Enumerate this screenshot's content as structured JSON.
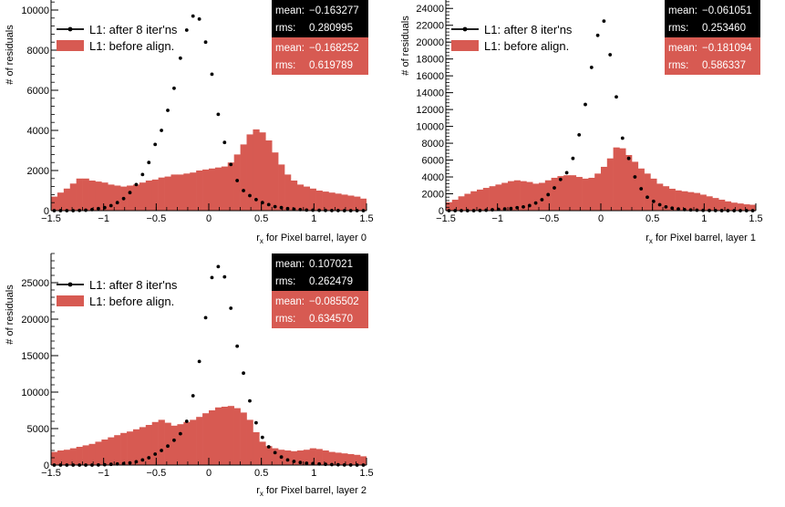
{
  "colors": {
    "before": "#d75a52",
    "after": "#000000",
    "statsAfterBg": "#000000",
    "statsBeforeBg": "#d75a52",
    "axis": "#000000"
  },
  "chart_data": [
    {
      "type": "histogram",
      "title": "",
      "xlabel_main": "r",
      "xlabel_sub": "x",
      "xlabel_rest": " for Pixel barrel, layer 0",
      "ylabel": "# of residuals",
      "xlim": [
        -1.5,
        1.5
      ],
      "ylim": [
        0,
        10500
      ],
      "yticks": [
        0,
        2000,
        4000,
        6000,
        8000,
        10000
      ],
      "ytick_labels": [
        "0",
        "2000",
        "4000",
        "6000",
        "8000",
        "10000"
      ],
      "xticks": [
        -1.5,
        -1,
        -0.5,
        0,
        0.5,
        1,
        1.5
      ],
      "xtick_labels": [
        "−1.5",
        "−1",
        "−0.5",
        "0",
        "0.5",
        "1",
        "1.5"
      ],
      "legend": {
        "after": "L1: after 8 iter'ns",
        "before": "L1: before align."
      },
      "stats_after": {
        "mean_label": "mean:",
        "mean": "−0.163277",
        "rms_label": "rms:",
        "rms": "0.280995"
      },
      "stats_before": {
        "mean_label": "mean:",
        "mean": "−0.168252",
        "rms_label": "rms:",
        "rms": "0.619789"
      },
      "series": [
        {
          "name": "before",
          "style": "filled-histogram",
          "bin_edges_start": -1.5,
          "bin_width": 0.06,
          "values": [
            700,
            900,
            1100,
            1350,
            1600,
            1600,
            1500,
            1450,
            1400,
            1300,
            1250,
            1200,
            1250,
            1300,
            1400,
            1500,
            1550,
            1650,
            1700,
            1800,
            1800,
            1850,
            1900,
            2000,
            2050,
            2100,
            2150,
            2200,
            2400,
            2800,
            3300,
            3800,
            4050,
            3900,
            3500,
            2900,
            2300,
            1800,
            1500,
            1300,
            1200,
            1100,
            1000,
            950,
            900,
            850,
            800,
            750,
            700,
            600
          ]
        },
        {
          "name": "after",
          "style": "points",
          "x": [
            -1.47,
            -1.41,
            -1.35,
            -1.29,
            -1.23,
            -1.17,
            -1.11,
            -1.05,
            -0.99,
            -0.93,
            -0.87,
            -0.81,
            -0.75,
            -0.69,
            -0.63,
            -0.57,
            -0.51,
            -0.45,
            -0.39,
            -0.33,
            -0.27,
            -0.21,
            -0.15,
            -0.09,
            -0.03,
            0.03,
            0.09,
            0.15,
            0.21,
            0.27,
            0.33,
            0.39,
            0.45,
            0.51,
            0.57,
            0.63,
            0.69,
            0.75,
            0.81,
            0.87,
            0.93,
            0.99,
            1.05,
            1.11,
            1.17,
            1.23,
            1.29,
            1.35,
            1.41,
            1.47
          ],
          "y": [
            0,
            0,
            0,
            0,
            10,
            20,
            50,
            100,
            150,
            250,
            400,
            600,
            900,
            1300,
            1800,
            2400,
            3300,
            4000,
            5000,
            6100,
            7600,
            9000,
            9700,
            9550,
            8400,
            6800,
            4800,
            3400,
            2300,
            1500,
            1000,
            750,
            550,
            400,
            300,
            200,
            150,
            100,
            70,
            50,
            30,
            20,
            15,
            10,
            5,
            5,
            0,
            0,
            0,
            0
          ]
        }
      ]
    },
    {
      "type": "histogram",
      "title": "",
      "xlabel_main": "r",
      "xlabel_sub": "x",
      "xlabel_rest": " for Pixel barrel, layer 1",
      "ylabel": "# of residuals",
      "xlim": [
        -1.5,
        1.5
      ],
      "ylim": [
        0,
        25000
      ],
      "yticks": [
        0,
        2000,
        4000,
        6000,
        8000,
        10000,
        12000,
        14000,
        16000,
        18000,
        20000,
        22000,
        24000
      ],
      "ytick_labels": [
        "0",
        "2000",
        "4000",
        "6000",
        "8000",
        "10000",
        "12000",
        "14000",
        "16000",
        "18000",
        "20000",
        "22000",
        "24000"
      ],
      "xticks": [
        -1.5,
        -1,
        -0.5,
        0,
        0.5,
        1,
        1.5
      ],
      "xtick_labels": [
        "−1.5",
        "−1",
        "−0.5",
        "0",
        "0.5",
        "1",
        "1.5"
      ],
      "legend": {
        "after": "L1: after 8 iter'ns",
        "before": "L1: before align."
      },
      "stats_after": {
        "mean_label": "mean:",
        "mean": "−0.061051",
        "rms_label": "rms:",
        "rms": "0.253460"
      },
      "stats_before": {
        "mean_label": "mean:",
        "mean": "−0.181094",
        "rms_label": "rms:",
        "rms": "0.586337"
      },
      "series": [
        {
          "name": "before",
          "style": "filled-histogram",
          "bin_edges_start": -1.5,
          "bin_width": 0.06,
          "values": [
            1000,
            1300,
            1700,
            2000,
            2300,
            2500,
            2700,
            2900,
            3100,
            3300,
            3500,
            3600,
            3500,
            3400,
            3200,
            3300,
            3600,
            3900,
            4100,
            4200,
            4200,
            4000,
            3800,
            3900,
            4400,
            5200,
            6200,
            7500,
            7400,
            6600,
            5800,
            5000,
            4400,
            3800,
            3200,
            2900,
            2600,
            2400,
            2300,
            2200,
            2100,
            1900,
            1700,
            1500,
            1300,
            1100,
            950,
            850,
            750,
            700
          ]
        },
        {
          "name": "after",
          "style": "points",
          "x": [
            -1.47,
            -1.41,
            -1.35,
            -1.29,
            -1.23,
            -1.17,
            -1.11,
            -1.05,
            -0.99,
            -0.93,
            -0.87,
            -0.81,
            -0.75,
            -0.69,
            -0.63,
            -0.57,
            -0.51,
            -0.45,
            -0.39,
            -0.33,
            -0.27,
            -0.21,
            -0.15,
            -0.09,
            -0.03,
            0.03,
            0.09,
            0.15,
            0.21,
            0.27,
            0.33,
            0.39,
            0.45,
            0.51,
            0.57,
            0.63,
            0.69,
            0.75,
            0.81,
            0.87,
            0.93,
            0.99,
            1.05,
            1.11,
            1.17,
            1.23,
            1.29,
            1.35,
            1.41,
            1.47
          ],
          "y": [
            0,
            0,
            0,
            0,
            0,
            20,
            50,
            100,
            150,
            200,
            250,
            350,
            450,
            600,
            900,
            1300,
            1900,
            2700,
            3700,
            4500,
            6200,
            9000,
            12600,
            17000,
            20800,
            22500,
            18500,
            13500,
            8600,
            6200,
            4000,
            2600,
            1600,
            1100,
            700,
            450,
            300,
            200,
            120,
            80,
            50,
            30,
            20,
            10,
            5,
            0,
            0,
            0,
            0,
            0
          ]
        }
      ]
    },
    {
      "type": "histogram",
      "title": "",
      "xlabel_main": "r",
      "xlabel_sub": "x",
      "xlabel_rest": " for Pixel barrel, layer 2",
      "ylabel": "# of residuals",
      "xlim": [
        -1.5,
        1.5
      ],
      "ylim": [
        0,
        29000
      ],
      "yticks": [
        0,
        5000,
        10000,
        15000,
        20000,
        25000
      ],
      "ytick_labels": [
        "0",
        "5000",
        "10000",
        "15000",
        "20000",
        "25000"
      ],
      "xticks": [
        -1.5,
        -1,
        -0.5,
        0,
        0.5,
        1,
        1.5
      ],
      "xtick_labels": [
        "−1.5",
        "−1",
        "−0.5",
        "0",
        "0.5",
        "1",
        "1.5"
      ],
      "legend": {
        "after": "L1: after 8 iter'ns",
        "before": "L1: before align."
      },
      "stats_after": {
        "mean_label": "mean:",
        "mean": "0.107021",
        "rms_label": "rms:",
        "rms": "0.262479"
      },
      "stats_before": {
        "mean_label": "mean:",
        "mean": "−0.085502",
        "rms_label": "rms:",
        "rms": "0.634570"
      },
      "series": [
        {
          "name": "before",
          "style": "filled-histogram",
          "bin_edges_start": -1.5,
          "bin_width": 0.06,
          "values": [
            1800,
            2000,
            2100,
            2300,
            2500,
            2700,
            2900,
            3200,
            3500,
            3800,
            4100,
            4400,
            4600,
            4900,
            5200,
            5500,
            5900,
            6200,
            5800,
            5400,
            5600,
            5900,
            6200,
            6600,
            7100,
            7500,
            7900,
            8000,
            8100,
            7800,
            7200,
            6200,
            4500,
            3200,
            2600,
            2300,
            2100,
            2000,
            1900,
            2000,
            2100,
            2300,
            2200,
            2000,
            1800,
            1700,
            1600,
            1500,
            1400,
            1200
          ]
        },
        {
          "name": "after",
          "style": "points",
          "x": [
            -1.47,
            -1.41,
            -1.35,
            -1.29,
            -1.23,
            -1.17,
            -1.11,
            -1.05,
            -0.99,
            -0.93,
            -0.87,
            -0.81,
            -0.75,
            -0.69,
            -0.63,
            -0.57,
            -0.51,
            -0.45,
            -0.39,
            -0.33,
            -0.27,
            -0.21,
            -0.15,
            -0.09,
            -0.03,
            0.03,
            0.09,
            0.15,
            0.21,
            0.27,
            0.33,
            0.39,
            0.45,
            0.51,
            0.57,
            0.63,
            0.69,
            0.75,
            0.81,
            0.87,
            0.93,
            0.99,
            1.05,
            1.11,
            1.17,
            1.23,
            1.29,
            1.35,
            1.41,
            1.47
          ],
          "y": [
            0,
            0,
            0,
            0,
            0,
            0,
            0,
            20,
            50,
            100,
            150,
            200,
            300,
            450,
            700,
            1000,
            1500,
            2000,
            2600,
            3400,
            4300,
            6000,
            9500,
            14200,
            20200,
            25700,
            27200,
            25800,
            21500,
            16300,
            12600,
            8800,
            5800,
            3800,
            2500,
            1700,
            1100,
            700,
            500,
            350,
            250,
            200,
            150,
            100,
            60,
            40,
            20,
            10,
            0,
            0
          ]
        }
      ]
    }
  ]
}
